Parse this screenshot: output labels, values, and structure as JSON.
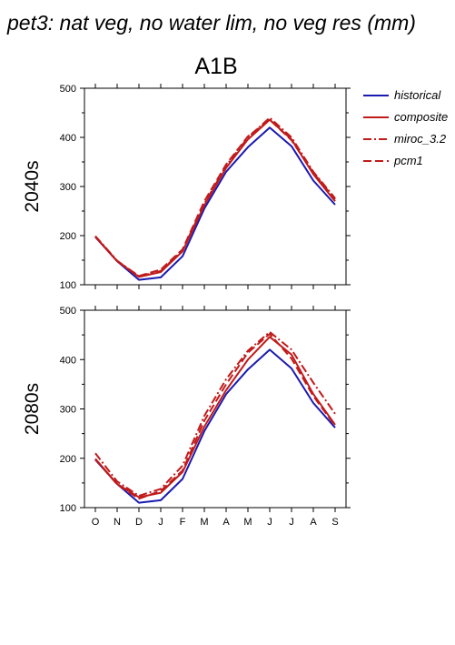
{
  "figure": {
    "title": "pet3: nat veg, no water lim, no veg res (mm)",
    "scenario": "A1B"
  },
  "legend": {
    "placement": "right",
    "entries": [
      {
        "name": "historical",
        "color": "#1a1ab0",
        "dash": "solid"
      },
      {
        "name": "composite",
        "color": "#c01a1a",
        "dash": "solid"
      },
      {
        "name": "miroc_3.2",
        "color": "#c01a1a",
        "dash": "dashdot"
      },
      {
        "name": "pcm1",
        "color": "#c01a1a",
        "dash": "dashed"
      }
    ]
  },
  "chart_data": [
    {
      "type": "line",
      "ylabel": "2040s",
      "categories": [
        "O",
        "N",
        "D",
        "J",
        "F",
        "M",
        "A",
        "M",
        "J",
        "J",
        "A",
        "S"
      ],
      "ylim": [
        100,
        500
      ],
      "yticks": [
        100,
        200,
        300,
        400,
        500
      ],
      "grid": false,
      "series": [
        {
          "name": "historical",
          "values": [
            197,
            148,
            110,
            115,
            158,
            255,
            330,
            380,
            420,
            382,
            312,
            263
          ]
        },
        {
          "name": "composite",
          "values": [
            198,
            148,
            116,
            126,
            168,
            262,
            338,
            396,
            436,
            396,
            325,
            270
          ]
        },
        {
          "name": "miroc_3.2",
          "values": [
            199,
            149,
            117,
            128,
            170,
            265,
            342,
            400,
            440,
            400,
            330,
            276
          ]
        },
        {
          "name": "pcm1",
          "values": [
            198,
            148,
            118,
            131,
            172,
            270,
            345,
            402,
            436,
            394,
            328,
            274
          ]
        }
      ]
    },
    {
      "type": "line",
      "ylabel": "2080s",
      "categories": [
        "O",
        "N",
        "D",
        "J",
        "F",
        "M",
        "A",
        "M",
        "J",
        "J",
        "A",
        "S"
      ],
      "ylim": [
        100,
        500
      ],
      "yticks": [
        100,
        200,
        300,
        400,
        500
      ],
      "grid": false,
      "series": [
        {
          "name": "historical",
          "values": [
            197,
            148,
            110,
            115,
            158,
            255,
            330,
            380,
            420,
            382,
            312,
            262
          ]
        },
        {
          "name": "composite",
          "values": [
            199,
            148,
            121,
            130,
            172,
            264,
            338,
            400,
            446,
            410,
            330,
            268
          ]
        },
        {
          "name": "miroc_3.2",
          "values": [
            210,
            153,
            124,
            138,
            185,
            286,
            360,
            418,
            456,
            420,
            353,
            290
          ]
        },
        {
          "name": "pcm1",
          "values": [
            198,
            147,
            118,
            134,
            175,
            276,
            350,
            414,
            452,
            402,
            326,
            266
          ]
        }
      ]
    }
  ]
}
